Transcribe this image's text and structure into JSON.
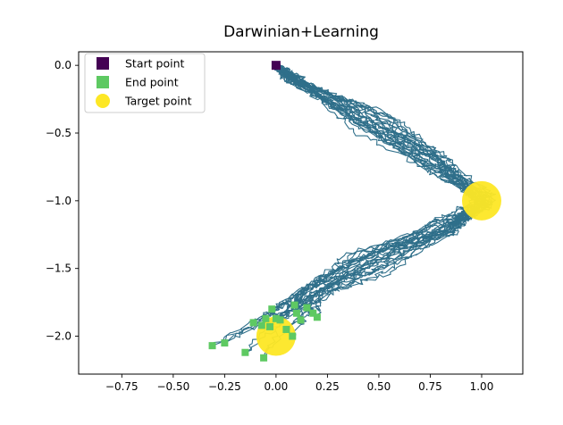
{
  "chart_data": {
    "type": "line",
    "title": "Darwinian+Learning",
    "xlabel": "",
    "ylabel": "",
    "xlim": [
      -0.96,
      1.2
    ],
    "ylim": [
      -2.28,
      0.1
    ],
    "x_ticks": [
      -0.75,
      -0.5,
      -0.25,
      0.0,
      0.25,
      0.5,
      0.75,
      1.0
    ],
    "x_tick_labels": [
      "−0.75",
      "−0.50",
      "−0.25",
      "0.00",
      "0.25",
      "0.50",
      "0.75",
      "1.00"
    ],
    "y_ticks": [
      0.0,
      -0.5,
      -1.0,
      -1.5,
      -2.0
    ],
    "y_tick_labels": [
      "0.0",
      "−0.5",
      "−1.0",
      "−1.5",
      "−2.0"
    ],
    "grid": false,
    "legend_position": "top-left",
    "legend": [
      {
        "label": "Start point",
        "marker": "square",
        "color": "#440154"
      },
      {
        "label": "End point",
        "marker": "square",
        "color": "#5ec962"
      },
      {
        "label": "Target point",
        "marker": "circle",
        "color": "#fde725"
      }
    ],
    "trajectory_color": "#2f6f8a",
    "trajectory_count": 25,
    "start_point": {
      "x": 0.0,
      "y": 0.0
    },
    "target_points": [
      {
        "x": 1.0,
        "y": -1.0
      },
      {
        "x": 0.0,
        "y": -2.0
      }
    ],
    "end_points": [
      {
        "x": -0.31,
        "y": -2.07
      },
      {
        "x": -0.25,
        "y": -2.05
      },
      {
        "x": -0.15,
        "y": -2.12
      },
      {
        "x": -0.06,
        "y": -2.16
      },
      {
        "x": -0.11,
        "y": -1.9
      },
      {
        "x": -0.07,
        "y": -1.92
      },
      {
        "x": -0.05,
        "y": -1.87
      },
      {
        "x": -0.03,
        "y": -1.93
      },
      {
        "x": -0.02,
        "y": -1.8
      },
      {
        "x": 0.0,
        "y": -1.87
      },
      {
        "x": 0.02,
        "y": -1.88
      },
      {
        "x": 0.05,
        "y": -1.95
      },
      {
        "x": 0.08,
        "y": -2.0
      },
      {
        "x": 0.09,
        "y": -1.77
      },
      {
        "x": 0.1,
        "y": -1.83
      },
      {
        "x": 0.12,
        "y": -1.88
      },
      {
        "x": 0.15,
        "y": -1.79
      },
      {
        "x": 0.18,
        "y": -1.83
      },
      {
        "x": 0.2,
        "y": -1.86
      }
    ]
  }
}
